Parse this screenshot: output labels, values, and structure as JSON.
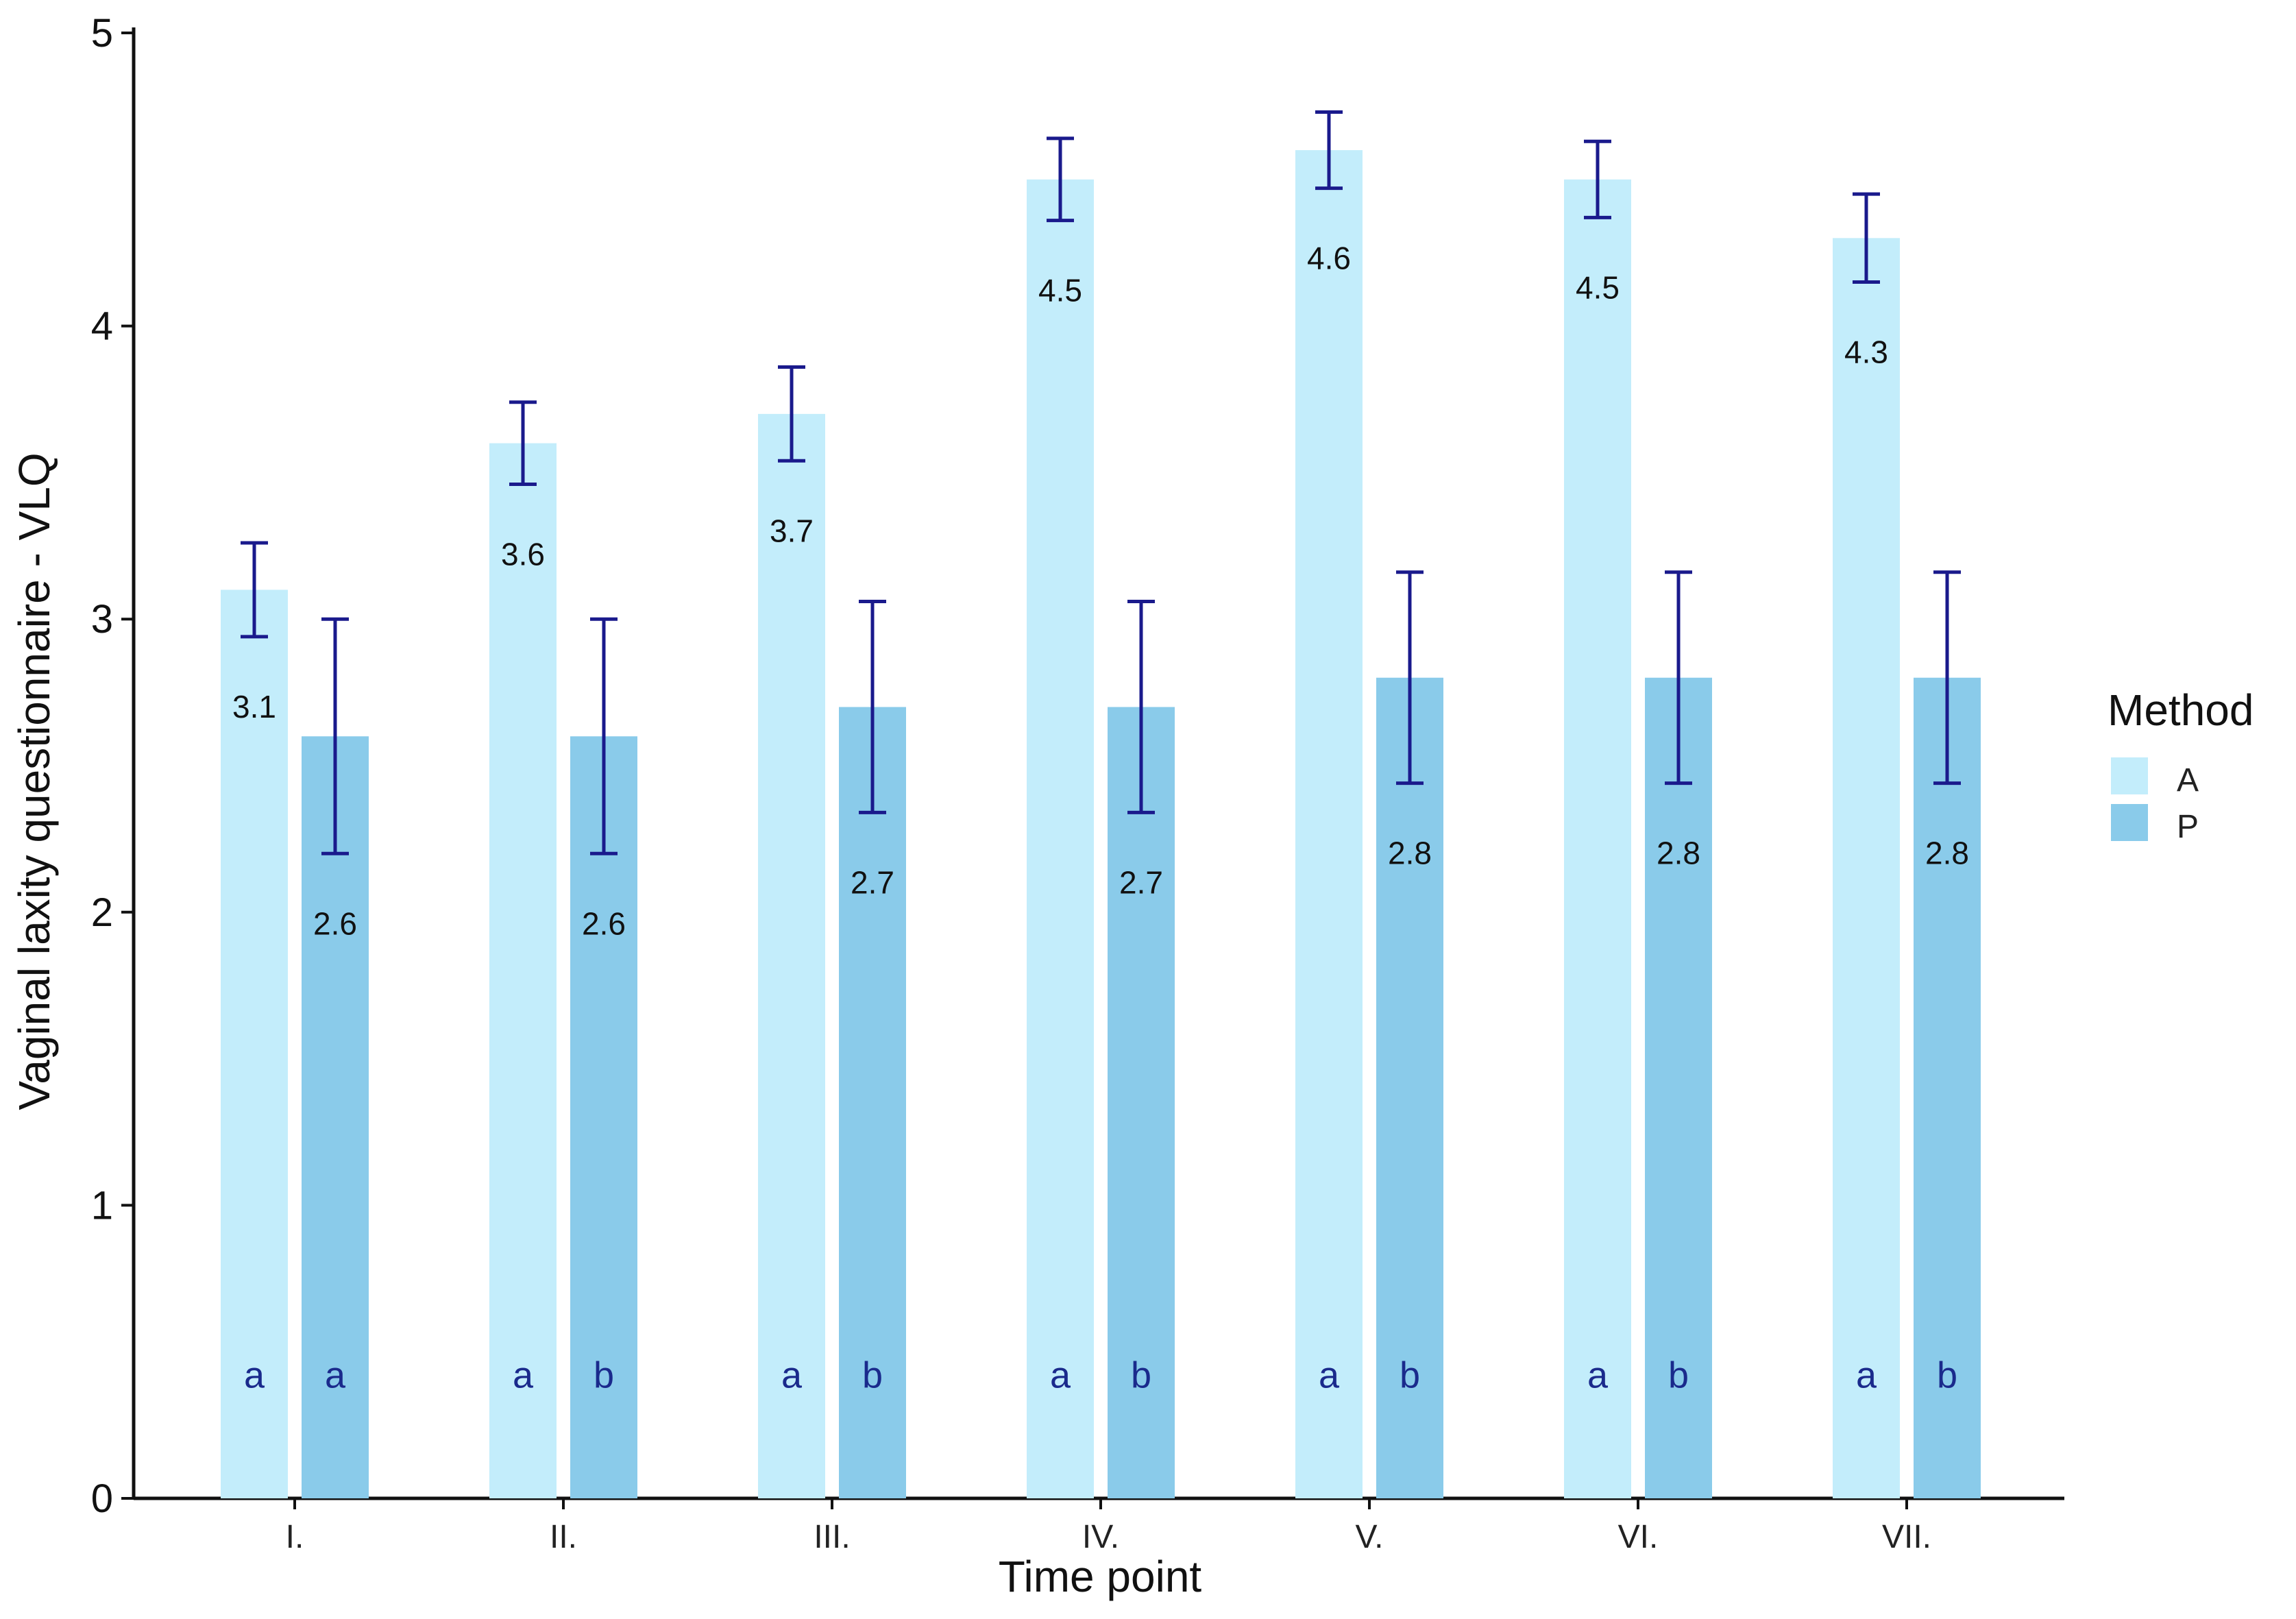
{
  "chart_data": {
    "type": "bar",
    "title": "",
    "xlabel": "Time point",
    "ylabel": "Vaginal laxity questionnaire - VLQ",
    "categories": [
      "I.",
      "II.",
      "III.",
      "IV.",
      "V.",
      "VI.",
      "VII."
    ],
    "ylim": [
      0,
      5
    ],
    "yticks": [
      "0",
      "1",
      "2",
      "3",
      "4",
      "5"
    ],
    "legend": {
      "title": "Method",
      "position": "right"
    },
    "series": [
      {
        "name": "A",
        "color": "#c3edfb",
        "values": [
          3.1,
          3.6,
          3.7,
          4.5,
          4.6,
          4.5,
          4.3
        ],
        "value_labels": [
          "3.1",
          "3.6",
          "3.7",
          "4.5",
          "4.6",
          "4.5",
          "4.3"
        ],
        "error_low": [
          2.94,
          3.46,
          3.54,
          4.36,
          4.47,
          4.37,
          4.15
        ],
        "error_high": [
          3.26,
          3.74,
          3.86,
          4.64,
          4.73,
          4.63,
          4.45
        ],
        "group_letters": [
          "a",
          "a",
          "a",
          "a",
          "a",
          "a",
          "a"
        ]
      },
      {
        "name": "P",
        "color": "#8acbea",
        "values": [
          2.6,
          2.6,
          2.7,
          2.7,
          2.8,
          2.8,
          2.8
        ],
        "value_labels": [
          "2.6",
          "2.6",
          "2.7",
          "2.7",
          "2.8",
          "2.8",
          "2.8"
        ],
        "error_low": [
          2.2,
          2.2,
          2.34,
          2.34,
          2.44,
          2.44,
          2.44
        ],
        "error_high": [
          3.0,
          3.0,
          3.06,
          3.06,
          3.16,
          3.16,
          3.16
        ],
        "group_letters": [
          "a",
          "b",
          "b",
          "b",
          "b",
          "b",
          "b"
        ]
      }
    ],
    "error_bar_color": "#1a1a8c",
    "letter_color": "#1a2a8c"
  }
}
